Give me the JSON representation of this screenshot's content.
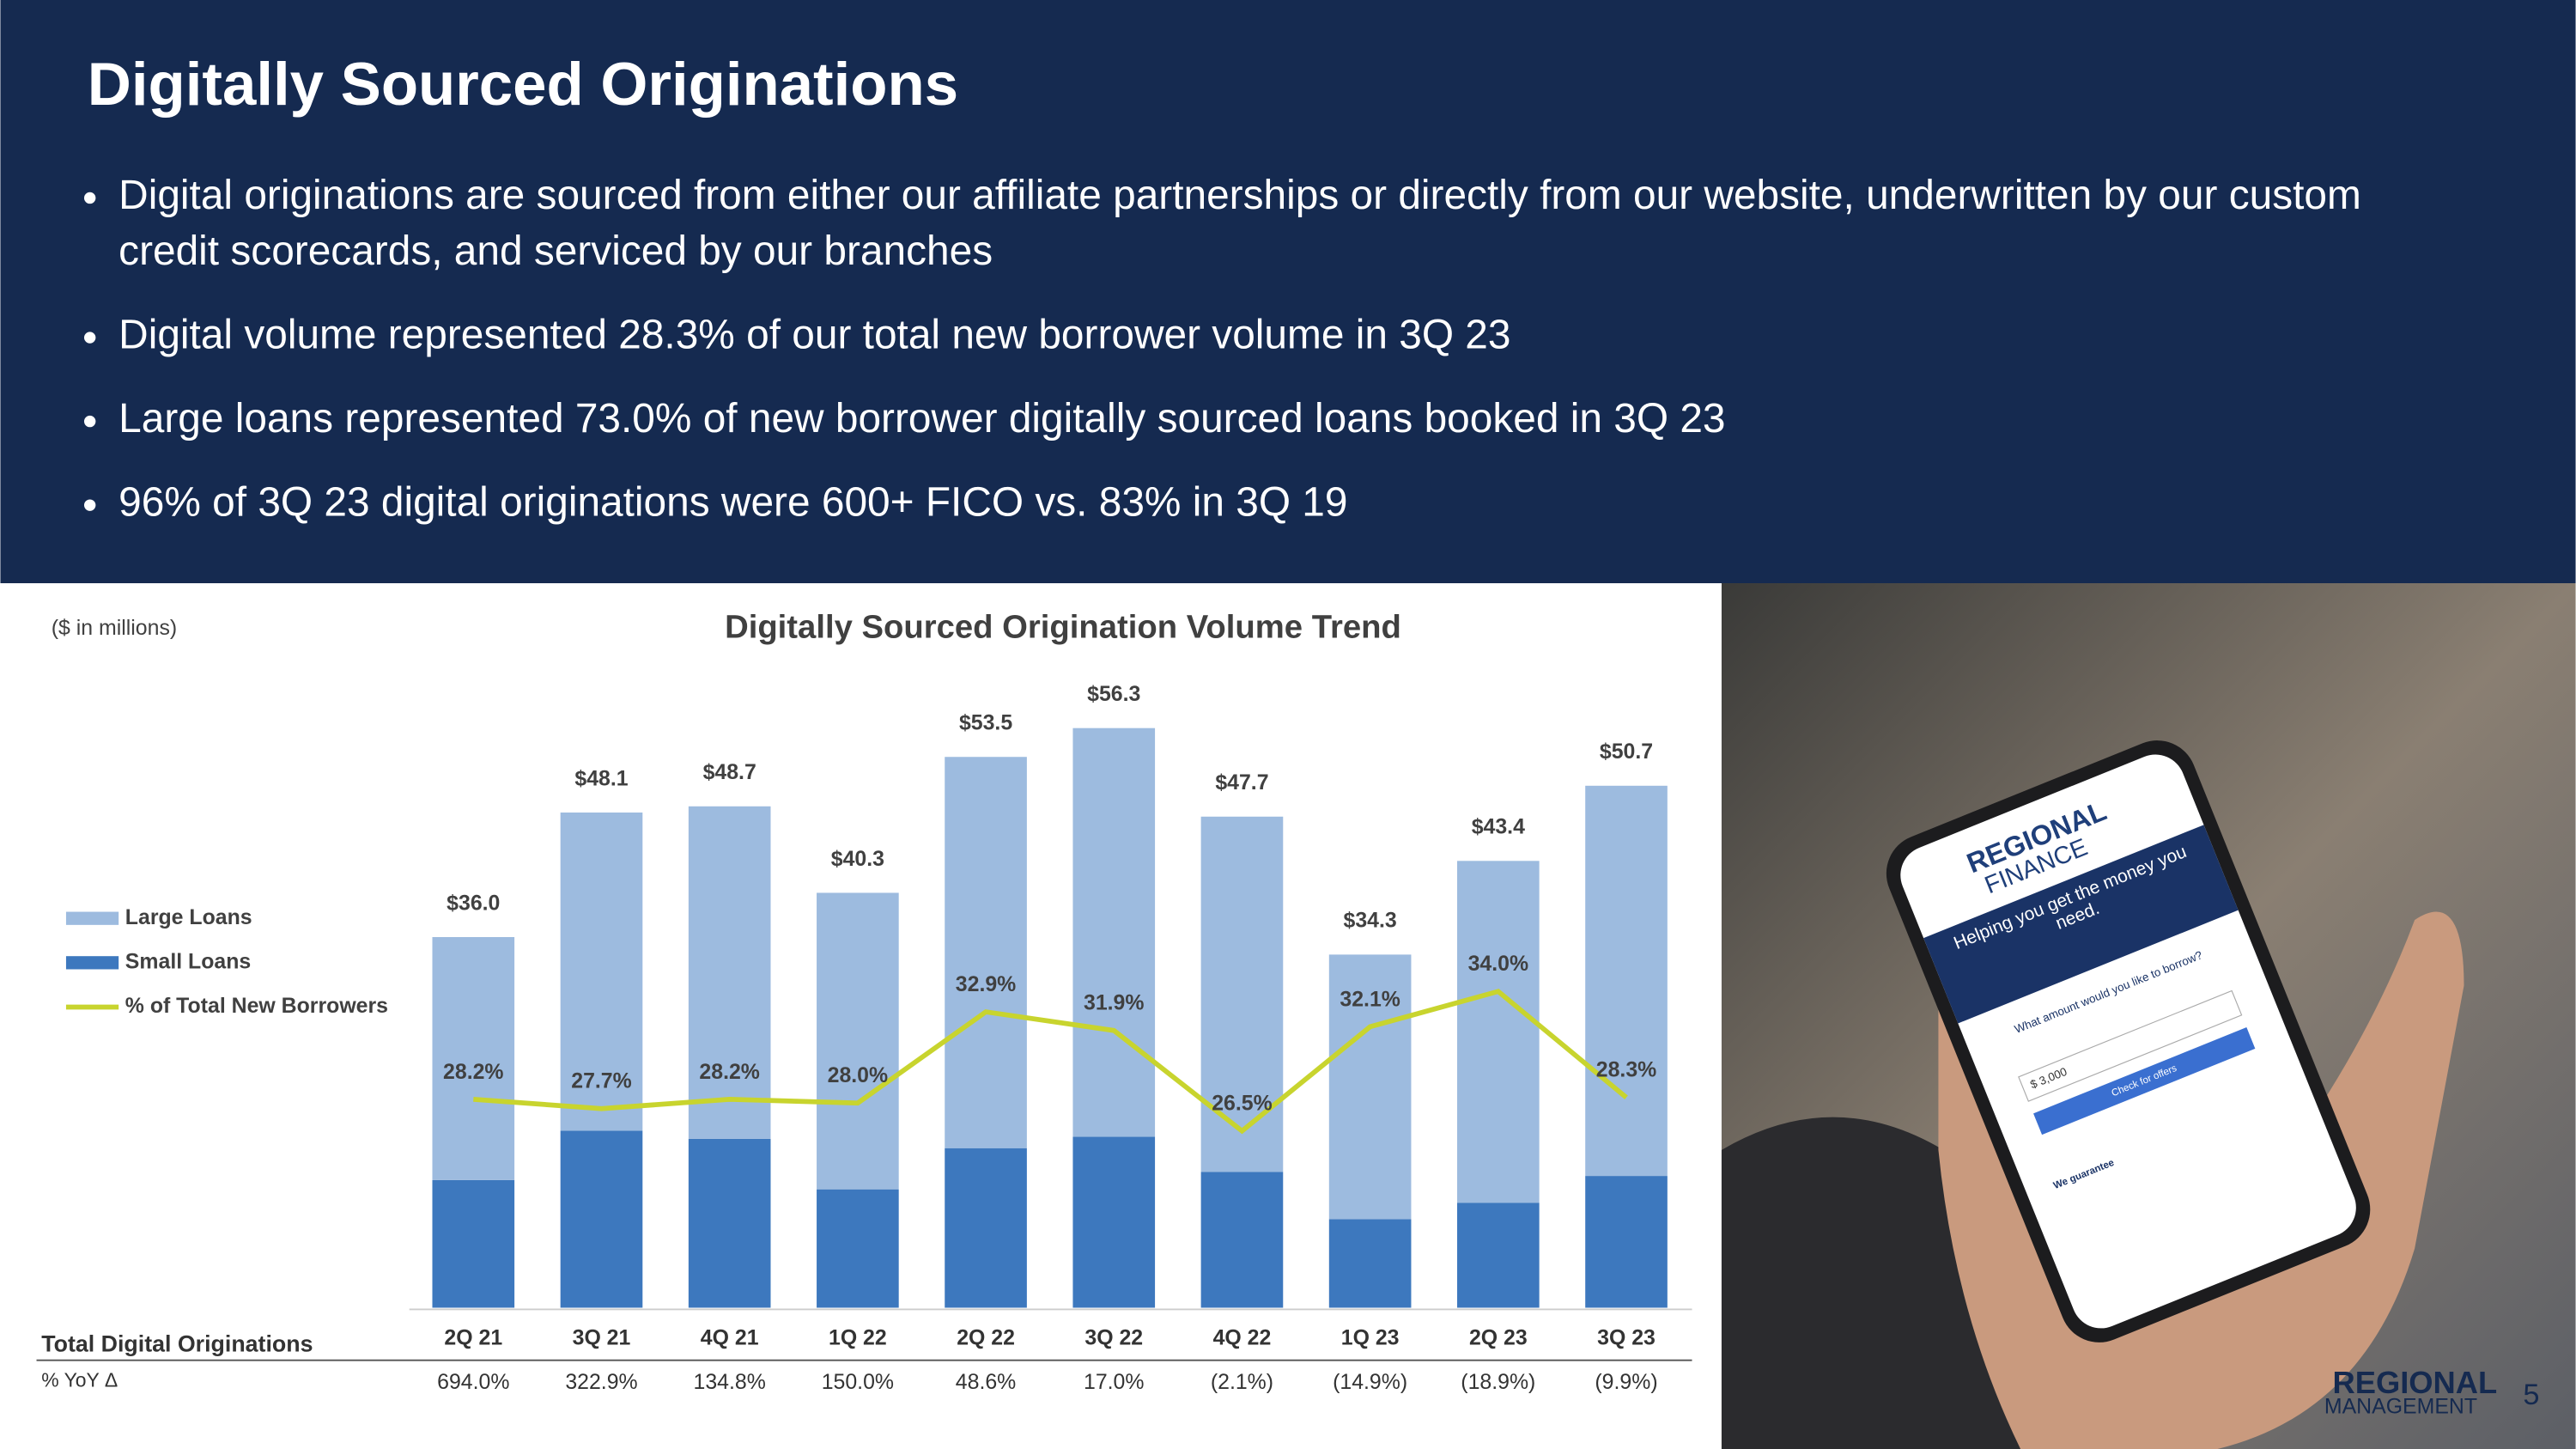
{
  "header": {
    "title": "Digitally Sourced Originations",
    "bullets": [
      "Digital originations are sourced from either our affiliate partnerships or directly from our website, underwritten by our custom credit scorecards, and serviced by our branches",
      "Digital volume represented 28.3% of our total new borrower volume in 3Q 23",
      "Large loans represented 73.0% of new borrower digitally sourced loans booked in 3Q 23",
      "96% of 3Q 23 digital originations were 600+ FICO vs. 83% in 3Q 19"
    ]
  },
  "chart_data": {
    "type": "bar",
    "stacked": true,
    "title": "Digitally Sourced Origination Volume Trend",
    "unit_note": "($ in millions)",
    "categories": [
      "2Q 21",
      "3Q 21",
      "4Q 21",
      "1Q 22",
      "2Q 22",
      "3Q 22",
      "4Q 22",
      "1Q 23",
      "2Q 23",
      "3Q 23"
    ],
    "series": [
      {
        "name": "Large Loans",
        "color": "#9dbbdf",
        "values": [
          23.6,
          30.9,
          32.3,
          28.8,
          38.0,
          39.7,
          34.5,
          25.7,
          33.2,
          37.9
        ]
      },
      {
        "name": "Small Loans",
        "color": "#3d78be",
        "values": [
          12.4,
          17.2,
          16.4,
          11.5,
          15.5,
          16.6,
          13.2,
          8.6,
          10.2,
          12.8
        ]
      },
      {
        "name": "% of Total New Borrowers",
        "type": "line",
        "axis": "y2",
        "color": "#c8d42e",
        "values": [
          28.2,
          27.7,
          28.2,
          28.0,
          32.9,
          31.9,
          26.5,
          32.1,
          34.0,
          28.3
        ],
        "value_labels": [
          "28.2%",
          "27.7%",
          "28.2%",
          "28.0%",
          "32.9%",
          "31.9%",
          "26.5%",
          "32.1%",
          "34.0%",
          "28.3%"
        ]
      }
    ],
    "totals": [
      36.0,
      48.1,
      48.7,
      40.3,
      53.5,
      56.3,
      47.7,
      34.3,
      43.4,
      50.7
    ],
    "total_labels": [
      "$36.0",
      "$48.1",
      "$48.7",
      "$40.3",
      "$53.5",
      "$56.3",
      "$47.7",
      "$34.3",
      "$43.4",
      "$50.7"
    ],
    "ylim": [
      0,
      60
    ],
    "y2lim": [
      17,
      50.2
    ],
    "legend": "left",
    "row_title": "Total Digital Originations",
    "yoy": {
      "label": "% YoY Δ",
      "values": [
        "694.0%",
        "322.9%",
        "134.8%",
        "150.0%",
        "48.6%",
        "17.0%",
        "(2.1%)",
        "(14.9%)",
        "(18.9%)",
        "(9.9%)"
      ]
    }
  },
  "photo": {
    "brand_top": "REGIONAL",
    "brand_bottom": "FINANCE",
    "headline": "Helping you get the money you need.",
    "question": "What amount would you like to borrow?",
    "amount": "$ 3,000",
    "button": "Check for offers",
    "guarantee": "We guarantee"
  },
  "footer": {
    "logo_top": "REGIONAL",
    "logo_bottom": "MANAGEMENT",
    "page": "5"
  }
}
